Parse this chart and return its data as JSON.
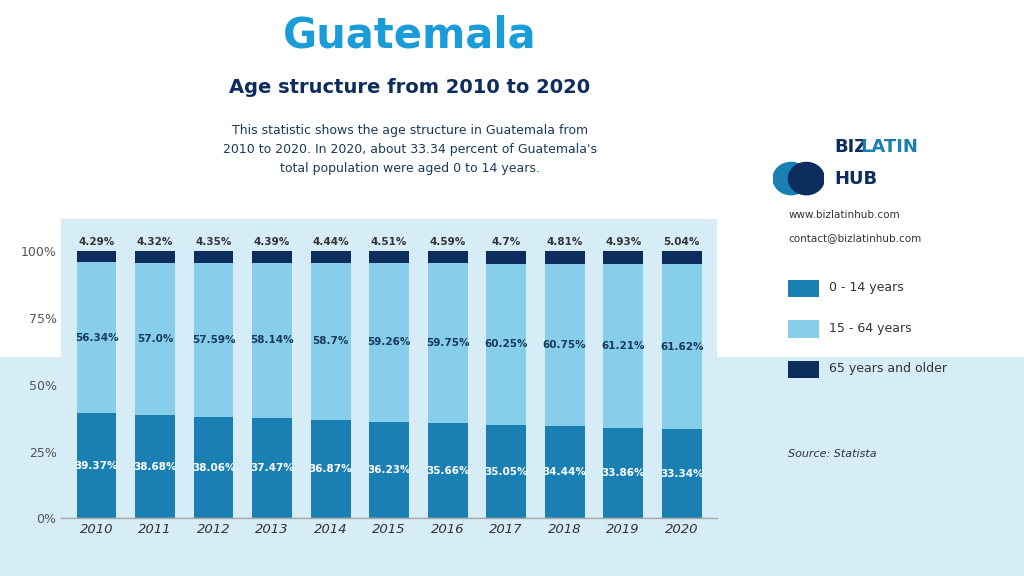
{
  "title": "Guatemala",
  "subtitle": "Age structure from 2010 to 2020",
  "description": "This statistic shows the age structure in Guatemala from\n2010 to 2020. In 2020, about 33.34 percent of Guatemala's\ntotal population were aged 0 to 14 years.",
  "years": [
    2010,
    2011,
    2012,
    2013,
    2014,
    2015,
    2016,
    2017,
    2018,
    2019,
    2020
  ],
  "age_0_14": [
    39.37,
    38.68,
    38.06,
    37.47,
    36.87,
    36.23,
    35.66,
    35.05,
    34.44,
    33.86,
    33.34
  ],
  "age_15_64": [
    56.34,
    57.0,
    57.59,
    58.14,
    58.7,
    59.26,
    59.75,
    60.25,
    60.75,
    61.21,
    61.62
  ],
  "age_65p": [
    4.29,
    4.32,
    4.35,
    4.39,
    4.44,
    4.51,
    4.59,
    4.7,
    4.81,
    4.93,
    5.04
  ],
  "color_0_14": "#1a80b4",
  "color_15_64": "#87ceeb",
  "color_65p": "#0d2d5e",
  "bg_top": "#ffffff",
  "bg_bottom": "#d6ecf7",
  "bar_width": 0.68,
  "ylabel_ticks": [
    "0%",
    "25%",
    "50%",
    "75%",
    "100%"
  ],
  "ytick_values": [
    0,
    25,
    50,
    75,
    100
  ],
  "legend_labels": [
    "0 - 14 years",
    "15 - 64 years",
    "65 years and older"
  ],
  "source_text": "Source: Statista",
  "website_text": "www.bizlatinhub.com",
  "contact_text": "contact@bizlatinhub.com",
  "title_color": "#1a9cd8",
  "subtitle_color": "#0d2d5e",
  "desc_color": "#1a3a5c",
  "logo_biz_color": "#0d2d5e",
  "logo_latin_color": "#1a80b4"
}
